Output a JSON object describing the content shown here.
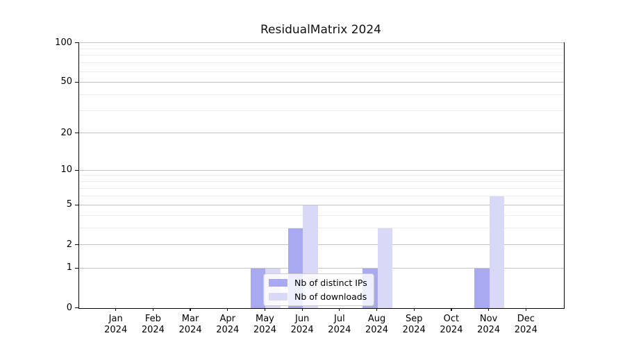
{
  "title": "ResidualMatrix 2024",
  "chart_data": {
    "type": "bar",
    "title": "ResidualMatrix 2024",
    "categories": [
      "Jan 2024",
      "Feb 2024",
      "Mar 2024",
      "Apr 2024",
      "May 2024",
      "Jun 2024",
      "Jul 2024",
      "Aug 2024",
      "Sep 2024",
      "Oct 2024",
      "Nov 2024",
      "Dec 2024"
    ],
    "series": [
      {
        "name": "Nb of distinct IPs",
        "color": "#a9a9f1",
        "values": [
          0,
          0,
          0,
          0,
          1,
          3,
          0,
          1,
          0,
          0,
          1,
          0
        ]
      },
      {
        "name": "Nb of downloads",
        "color": "#d9d9f7",
        "values": [
          0,
          0,
          0,
          0,
          1,
          5,
          0,
          3,
          0,
          0,
          6,
          0
        ]
      }
    ],
    "xlabel": "",
    "ylabel": "",
    "y_scale": "log1p",
    "ylim": [
      0,
      100
    ],
    "y_ticks": [
      0,
      1,
      2,
      5,
      10,
      20,
      50,
      100
    ],
    "y_minor_ticks": [
      3,
      4,
      6,
      7,
      8,
      9,
      30,
      40,
      60,
      70,
      80,
      90
    ],
    "grid": true,
    "legend_position": "lower-center-inside"
  },
  "colors": {
    "bar_dark": "#a9a9f1",
    "bar_light": "#d9d9f7",
    "grid_major": "#c2c2c2",
    "grid_minor": "#ececec",
    "axis": "#000000",
    "background": "#ffffff"
  }
}
